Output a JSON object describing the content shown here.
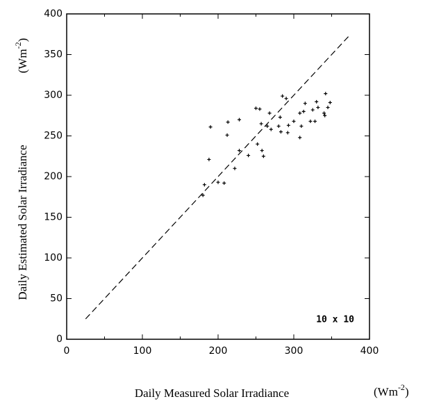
{
  "chart_data": {
    "type": "scatter",
    "x_label": "Daily Measured Solar Irradiance",
    "x_unit": [
      "(Wm",
      "-2",
      ")"
    ],
    "y_label": "Daily Estimated Solar Irradiance",
    "y_unit": [
      "(Wm",
      "-2",
      ")"
    ],
    "annotation": "10 x 10",
    "xlim": [
      0,
      400
    ],
    "ylim": [
      0,
      400
    ],
    "xticks": [
      0,
      100,
      200,
      300,
      400
    ],
    "yticks": [
      0,
      50,
      100,
      150,
      200,
      250,
      300,
      350,
      400
    ],
    "color": "#000000",
    "reference_line": {
      "x": [
        25,
        375
      ],
      "y": [
        25,
        375
      ]
    },
    "x": [
      180,
      182,
      188,
      190,
      200,
      208,
      212,
      213,
      222,
      228,
      228,
      240,
      250,
      252,
      255,
      257,
      258,
      260,
      265,
      268,
      270,
      280,
      282,
      283,
      285,
      290,
      292,
      293,
      300,
      308,
      308,
      310,
      313,
      315,
      322,
      325,
      328,
      330,
      332,
      340,
      341,
      342,
      345,
      348
    ],
    "y": [
      177,
      190,
      221,
      261,
      193,
      192,
      251,
      267,
      210,
      232,
      270,
      226,
      284,
      240,
      283,
      265,
      232,
      225,
      262,
      278,
      258,
      262,
      273,
      255,
      299,
      296,
      254,
      263,
      268,
      248,
      278,
      262,
      280,
      290,
      268,
      282,
      268,
      292,
      285,
      278,
      275,
      302,
      285,
      291
    ]
  }
}
